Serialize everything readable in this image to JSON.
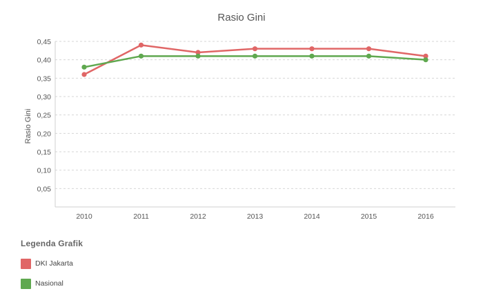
{
  "chart_data": {
    "type": "line",
    "title": "Rasio Gini",
    "xlabel": "",
    "ylabel": "Rasio Gini",
    "categories": [
      "2010",
      "2011",
      "2012",
      "2013",
      "2014",
      "2015",
      "2016"
    ],
    "ylim": [
      0,
      0.45
    ],
    "yticks": [
      "0,05",
      "0,10",
      "0,15",
      "0,20",
      "0,25",
      "0,30",
      "0,35",
      "0,40",
      "0,45"
    ],
    "ytick_values": [
      0.05,
      0.1,
      0.15,
      0.2,
      0.25,
      0.3,
      0.35,
      0.4,
      0.45
    ],
    "grid": true,
    "legend_position": "bottom-left",
    "series": [
      {
        "name": "DKI Jakarta",
        "color": "#e06666",
        "values": [
          0.36,
          0.44,
          0.42,
          0.43,
          0.43,
          0.43,
          0.41
        ]
      },
      {
        "name": "Nasional",
        "color": "#5fa84f",
        "values": [
          0.38,
          0.41,
          0.41,
          0.41,
          0.41,
          0.41,
          0.4
        ]
      }
    ]
  },
  "legend": {
    "title": "Legenda Grafik"
  }
}
